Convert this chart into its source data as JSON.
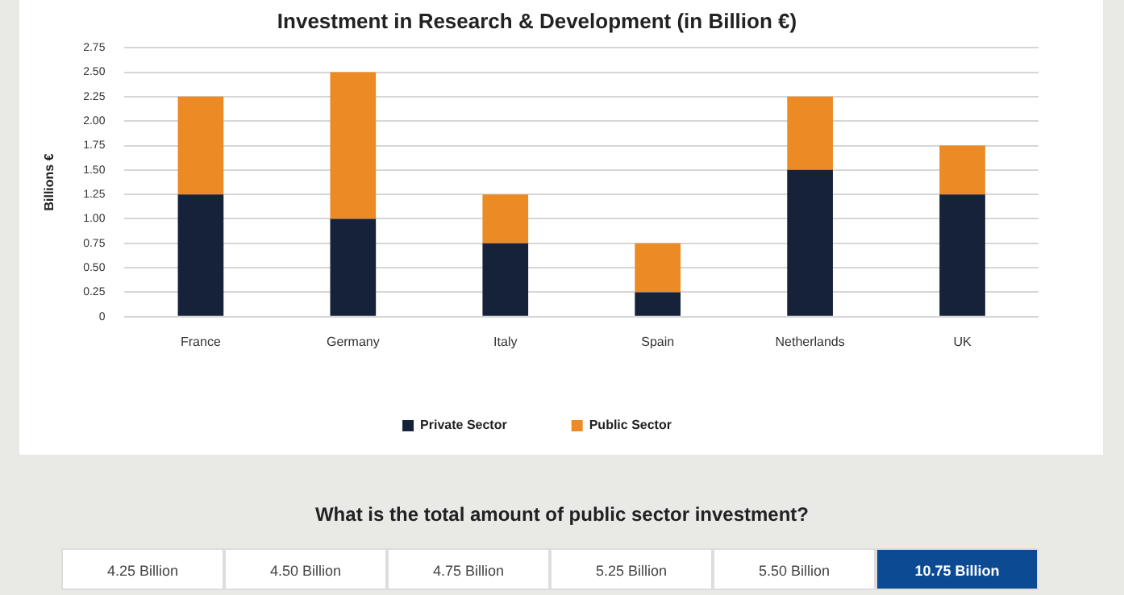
{
  "chart_data": {
    "type": "bar",
    "title": "Investment in Research & Development (in Billion €)",
    "ylabel": "Billions €",
    "categories": [
      "France",
      "Germany",
      "Italy",
      "Spain",
      "Netherlands",
      "UK"
    ],
    "series": [
      {
        "name": "Private Sector",
        "color": "#15223a",
        "values": [
          1.25,
          1.0,
          0.75,
          0.25,
          1.5,
          1.25
        ]
      },
      {
        "name": "Public Sector",
        "color": "#ec8a24",
        "values": [
          1.0,
          1.5,
          0.5,
          0.5,
          0.75,
          0.5
        ]
      }
    ],
    "stacked": true,
    "ylim": [
      0,
      2.75
    ],
    "yticks": [
      {
        "value": 0,
        "label": "0"
      },
      {
        "value": 0.25,
        "label": "0.25"
      },
      {
        "value": 0.5,
        "label": "0.50"
      },
      {
        "value": 0.75,
        "label": "0.75"
      },
      {
        "value": 1,
        "label": "1.00"
      },
      {
        "value": 1.25,
        "label": "1.25"
      },
      {
        "value": 1.5,
        "label": "1.50"
      },
      {
        "value": 1.75,
        "label": "1.75"
      },
      {
        "value": 2,
        "label": "2.00"
      },
      {
        "value": 2.25,
        "label": "2.25"
      },
      {
        "value": 2.5,
        "label": "2.50"
      },
      {
        "value": 2.75,
        "label": "2.75"
      }
    ],
    "grid": "y",
    "legend": "bottom",
    "annotations": [
      "What is the total amount of public sector investment?",
      "4.25 Billion",
      "4.50 Billion",
      "4.75 Billion",
      "5.25 Billion",
      "5.50 Billion",
      "10.75 Billion"
    ]
  }
}
